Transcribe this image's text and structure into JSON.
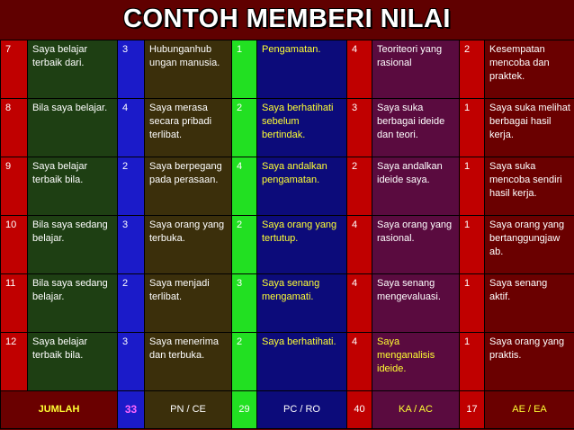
{
  "title": "CONTOH MEMBERI NILAI",
  "rows": [
    {
      "no": "7",
      "t1": "Saya belajar terbaik dari.",
      "n1": "3",
      "t2": "Hubunganhub ungan manusia.",
      "n2": "1",
      "t3": "Pengamatan.",
      "n3": "4",
      "t4": "Teoriteori yang rasional",
      "n4": "2",
      "t5": "Kesempatan mencoba dan praktek."
    },
    {
      "no": "8",
      "t1": "Bila saya belajar.",
      "n1": "4",
      "t2": "Saya merasa secara pribadi terlibat.",
      "n2": "2",
      "t3": "Saya berhatihati sebelum bertindak.",
      "n3": "3",
      "t4": "Saya suka berbagai ideide dan teori.",
      "n4": "1",
      "t5": "Saya suka melihat berbagai hasil kerja."
    },
    {
      "no": "9",
      "t1": "Saya belajar terbaik bila.",
      "n1": "2",
      "t2": "Saya berpegang pada perasaan.",
      "n2": "4",
      "t3": "Saya andalkan pengamatan.",
      "n3": "2",
      "t4": "Saya andalkan ideide saya.",
      "n4": "1",
      "t5": "Saya suka mencoba sendiri hasil kerja."
    },
    {
      "no": "10",
      "t1": "Bila saya sedang belajar.",
      "n1": "3",
      "t2": "Saya orang yang terbuka.",
      "n2": "2",
      "t3": "Saya orang yang tertutup.",
      "n3": "4",
      "t4": "Saya orang yang rasional.",
      "n4": "1",
      "t5": "Saya orang yang bertanggungjaw ab."
    },
    {
      "no": "11",
      "t1": "Bila saya sedang belajar.",
      "n1": "2",
      "t2": "Saya menjadi terlibat.",
      "n2": "3",
      "t3": "Saya senang mengamati.",
      "n3": "4",
      "t4": "Saya senang mengevaluasi.",
      "n4": "1",
      "t5": "Saya senang aktif."
    },
    {
      "no": "12",
      "t1": "Saya belajar terbaik bila.",
      "n1": "3",
      "t2": "Saya menerima dan terbuka.",
      "n2": "2",
      "t3": "Saya berhatihati.",
      "n3": "4",
      "t4": "Saya menganalisis ideide.",
      "n4": "1",
      "t5": "Saya orang yang praktis."
    }
  ],
  "total": {
    "label": "JUMLAH",
    "v1": "33",
    "l1": "PN / CE",
    "v2": "29",
    "l2": "PC / RO",
    "v3": "40",
    "l3": "KA / AC",
    "v4": "17",
    "l4": "AE / EA"
  },
  "colors": {
    "background": "#600000",
    "col_no": "#c00000",
    "col_text1": "#1e3f13",
    "col_num1": "#1b1bc9",
    "col_text2": "#3b2f0b",
    "col_num2": "#22e022",
    "col_text3": "#0c0b7a",
    "col_text4": "#5a0b3f",
    "col_text5": "#6a0000",
    "highlight_text": "#ffff33"
  }
}
